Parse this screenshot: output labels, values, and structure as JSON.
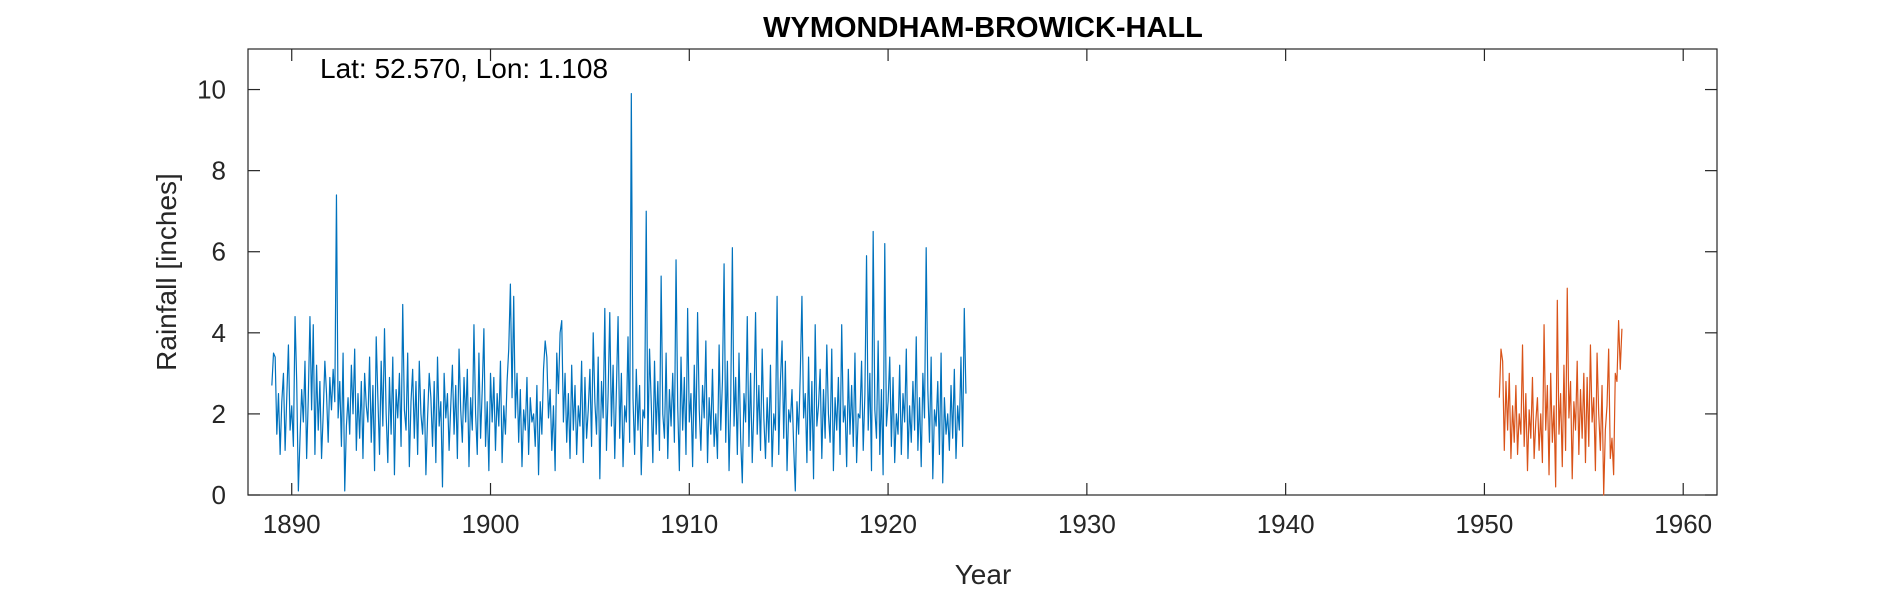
{
  "chart_data": {
    "type": "line",
    "title": "WYMONDHAM-BROWICK-HALL",
    "xlabel": "Year",
    "ylabel": "Rainfall [inches]",
    "annotation": "Lat: 52.570, Lon: 1.108",
    "xlim": [
      1887.8,
      1961.7
    ],
    "ylim": [
      0,
      11
    ],
    "x_ticks": [
      1890,
      1900,
      1910,
      1920,
      1930,
      1940,
      1950,
      1960
    ],
    "y_ticks": [
      0,
      2,
      4,
      6,
      8,
      10
    ],
    "x_tick_labels": [
      "1890",
      "1900",
      "1910",
      "1920",
      "1930",
      "1940",
      "1950",
      "1960"
    ],
    "y_tick_labels": [
      "0",
      "2",
      "4",
      "6",
      "8",
      "10"
    ],
    "grid": false,
    "box": true,
    "x_start": "1889-01",
    "x_step": "monthly",
    "series": [
      {
        "color": "#0072BD",
        "x_start": 1889.0,
        "values": [
          2.7,
          3.5,
          3.4,
          1.5,
          2.5,
          1.0,
          2.3,
          3.0,
          1.1,
          2.4,
          3.7,
          1.6,
          2.2,
          1.2,
          4.4,
          2.8,
          0.1,
          1.4,
          2.6,
          1.8,
          3.3,
          0.9,
          2.4,
          4.4,
          2.1,
          4.2,
          1.0,
          3.2,
          1.6,
          2.8,
          0.9,
          2.0,
          3.3,
          2.5,
          1.3,
          2.9,
          2.1,
          3.1,
          2.3,
          7.4,
          1.9,
          2.8,
          1.2,
          3.5,
          0.1,
          1.7,
          2.4,
          1.5,
          3.2,
          2.0,
          3.6,
          1.1,
          2.5,
          1.4,
          2.8,
          0.9,
          3.0,
          2.2,
          1.8,
          3.4,
          1.3,
          2.7,
          0.6,
          3.9,
          2.4,
          1.0,
          3.3,
          1.7,
          4.1,
          2.0,
          0.8,
          2.9,
          1.5,
          3.4,
          0.5,
          2.6,
          1.9,
          3.0,
          1.2,
          4.7,
          2.1,
          1.6,
          3.5,
          0.7,
          2.3,
          3.1,
          1.4,
          2.8,
          1.0,
          3.3,
          2.0,
          1.5,
          2.6,
          0.5,
          1.9,
          3.0,
          2.4,
          1.2,
          2.8,
          0.8,
          3.4,
          1.7,
          2.3,
          0.2,
          3.0,
          1.9,
          2.5,
          1.1,
          2.2,
          3.2,
          1.5,
          2.7,
          0.9,
          3.6,
          2.1,
          1.3,
          2.9,
          1.8,
          3.1,
          0.7,
          2.4,
          1.6,
          4.2,
          2.0,
          1.0,
          3.5,
          1.4,
          2.6,
          4.1,
          1.2,
          2.3,
          0.6,
          3.0,
          1.8,
          2.9,
          1.1,
          2.5,
          1.7,
          3.3,
          0.8,
          2.2,
          1.5,
          2.8,
          3.6,
          5.2,
          2.4,
          4.9,
          1.9,
          3.0,
          1.3,
          2.6,
          0.7,
          2.1,
          1.6,
          2.9,
          1.0,
          2.4,
          1.8,
          2.0,
          1.2,
          2.7,
          0.5,
          2.3,
          1.5,
          3.1,
          3.8,
          3.4,
          1.9,
          2.6,
          1.1,
          2.2,
          0.6,
          3.5,
          2.5,
          4.0,
          4.3,
          1.8,
          3.0,
          1.3,
          2.5,
          0.9,
          3.2,
          1.6,
          2.7,
          1.0,
          2.2,
          1.7,
          3.3,
          0.8,
          2.9,
          1.4,
          2.1,
          3.1,
          1.2,
          4.0,
          2.3,
          1.5,
          3.4,
          0.4,
          2.8,
          1.9,
          4.6,
          1.1,
          2.5,
          4.5,
          1.7,
          3.2,
          0.9,
          2.6,
          4.4,
          1.4,
          3.0,
          0.7,
          2.2,
          1.8,
          3.9,
          1.3,
          9.9,
          2.4,
          1.0,
          3.1,
          1.6,
          2.7,
          0.5,
          2.1,
          1.9,
          7.0,
          1.2,
          3.6,
          2.3,
          0.8,
          3.3,
          1.5,
          2.8,
          1.1,
          5.4,
          2.0,
          1.4,
          3.5,
          0.9,
          2.6,
          1.7,
          3.0,
          1.3,
          5.8,
          2.2,
          0.6,
          3.4,
          1.6,
          2.9,
          1.0,
          4.6,
          1.8,
          2.5,
          0.7,
          3.2,
          1.4,
          4.5,
          2.1,
          1.1,
          2.7,
          1.9,
          3.8,
          0.8,
          2.4,
          1.5,
          3.1,
          1.2,
          2.0,
          0.9,
          3.7,
          1.6,
          2.8,
          5.7,
          1.3,
          3.3,
          0.6,
          2.3,
          6.1,
          1.7,
          2.9,
          1.0,
          3.5,
          1.4,
          0.3,
          2.5,
          1.8,
          4.4,
          1.2,
          3.0,
          0.8,
          2.2,
          4.5,
          1.5,
          2.7,
          1.1,
          3.6,
          1.9,
          0.9,
          2.4,
          1.3,
          3.2,
          0.7,
          2.0,
          1.6,
          4.9,
          1.0,
          2.8,
          3.8,
          1.4,
          3.3,
          0.6,
          2.1,
          1.8,
          2.6,
          1.2,
          0.1,
          2.3,
          1.5,
          3.0,
          4.9,
          1.9,
          2.5,
          0.8,
          3.4,
          1.1,
          2.8,
          0.4,
          4.2,
          1.7,
          2.2,
          3.1,
          0.9,
          2.6,
          1.4,
          3.7,
          2.0,
          1.3,
          3.6,
          0.6,
          2.4,
          1.6,
          2.9,
          1.0,
          4.2,
          1.8,
          2.2,
          0.7,
          3.1,
          1.5,
          2.7,
          1.2,
          3.5,
          0.8,
          2.0,
          1.9,
          3.3,
          1.1,
          2.5,
          5.9,
          1.6,
          3.0,
          0.6,
          6.5,
          2.1,
          1.4,
          3.8,
          1.0,
          2.6,
          0.5,
          6.2,
          1.7,
          2.3,
          3.4,
          1.2,
          2.9,
          0.8,
          2.0,
          1.5,
          3.2,
          1.0,
          2.5,
          1.8,
          3.6,
          0.9,
          2.2,
          1.3,
          2.8,
          1.6,
          3.9,
          1.1,
          2.4,
          0.7,
          3.0,
          1.9,
          6.1,
          2.6,
          1.3,
          3.4,
          0.4,
          2.1,
          1.7,
          2.8,
          1.0,
          3.5,
          0.3,
          2.4,
          1.5,
          2.0,
          1.1,
          2.7,
          1.4,
          3.1,
          0.9,
          2.2,
          1.6,
          3.4,
          1.2,
          4.6,
          2.5
        ]
      },
      {
        "color": "#D95319",
        "x_start": 1950.75,
        "values": [
          2.4,
          3.6,
          3.3,
          1.1,
          2.8,
          1.6,
          3.0,
          0.9,
          2.2,
          1.3,
          2.7,
          1.0,
          2.0,
          1.5,
          3.7,
          1.2,
          2.5,
          0.6,
          2.1,
          1.4,
          2.9,
          0.9,
          1.8,
          2.4,
          1.1,
          2.0,
          0.8,
          4.2,
          1.6,
          2.7,
          0.5,
          3.0,
          1.3,
          2.2,
          0.2,
          4.8,
          1.5,
          2.5,
          0.7,
          3.2,
          1.1,
          5.1,
          1.9,
          2.8,
          0.4,
          2.3,
          1.6,
          3.3,
          1.0,
          2.6,
          1.4,
          3.0,
          0.8,
          2.9,
          1.2,
          3.7,
          1.8,
          2.4,
          0.6,
          3.5,
          2.0,
          1.1,
          2.7,
          0.0,
          1.6,
          2.2,
          3.6,
          0.9,
          1.4,
          0.5,
          3.0,
          2.8,
          4.3,
          3.1,
          4.1
        ]
      }
    ]
  }
}
